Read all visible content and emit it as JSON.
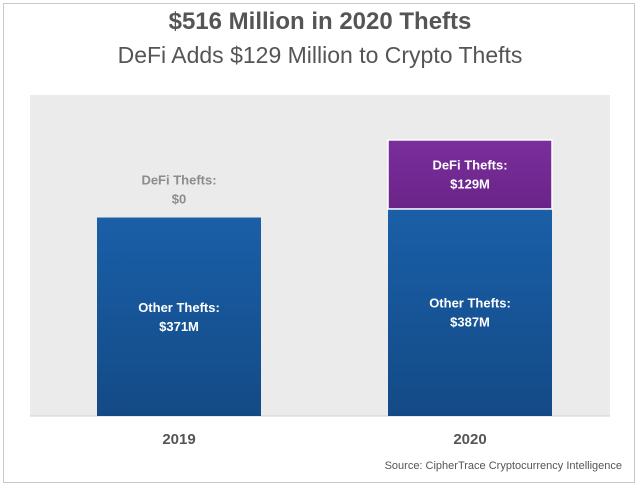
{
  "title": "$516 Million in 2020 Thefts",
  "subtitle": "DeFi Adds $129 Million to Crypto Thefts",
  "source": "Source: CipherTrace Cryptocurrency Intelligence",
  "colors": {
    "plot_background": "#ebebeb",
    "other_thefts": "#1a5fa8",
    "other_thefts_dark": "#134a86",
    "defi_thefts": "#7a2e9c",
    "defi_thefts_dark": "#6a2488",
    "outside_label": "#8c8c8c"
  },
  "chart_data": {
    "type": "bar",
    "stacked": true,
    "categories": [
      "2019",
      "2020"
    ],
    "series": [
      {
        "name": "Other Thefts",
        "values": [
          371,
          387
        ],
        "labels": [
          [
            "Other Thefts:",
            "$371M"
          ],
          [
            "Other Thefts:",
            "$387M"
          ]
        ]
      },
      {
        "name": "DeFi Thefts",
        "values": [
          0,
          129
        ],
        "labels": [
          [
            "DeFi Thefts:",
            "$0"
          ],
          [
            "DeFi Thefts:",
            "$129M"
          ]
        ]
      }
    ],
    "unit": "$M",
    "ylim": [
      0,
      600
    ],
    "grid": false,
    "legend": "none"
  }
}
